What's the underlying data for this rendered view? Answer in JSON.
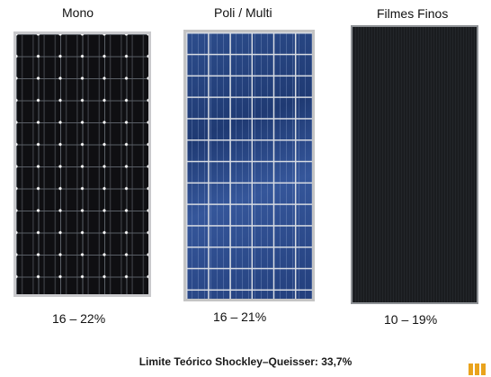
{
  "panels": [
    {
      "title": "Mono",
      "efficiency": "16 – 22%"
    },
    {
      "title": "Poli / Multi",
      "efficiency": "16 – 21%"
    },
    {
      "title": "Filmes Finos",
      "efficiency": "10 – 19%"
    }
  ],
  "footer": {
    "text": "Limite Teórico Shockley–Queisser: 33,7%"
  },
  "colors": {
    "mono_cells": "#0f0f12",
    "poly_cells": "#26437f",
    "thin_film": "#1b1d20",
    "logo_accent": "#e9a31d"
  },
  "logo": {
    "icon": "brand-bars-icon"
  }
}
